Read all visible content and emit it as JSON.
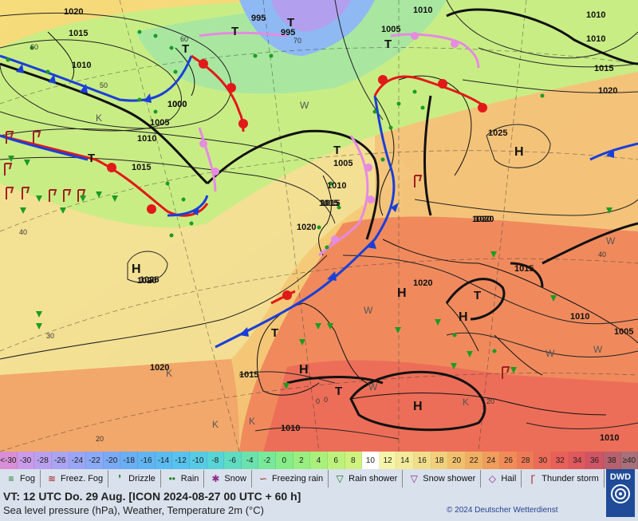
{
  "colors": {
    "cold_front": "#1a3fd8",
    "warm_front": "#e11919",
    "occluded_front": "#e58be0",
    "rain": "#1b9c24",
    "sea_bg": "#d7f08a",
    "warm_land": "#f27b57",
    "footer_bg": "#d9e1ec"
  },
  "map": {
    "high_labels": [
      "H",
      "H",
      "H",
      "H",
      "H",
      "H"
    ],
    "low_labels": [
      "T",
      "T",
      "T",
      "T",
      "T",
      "T",
      "T",
      "T",
      "T"
    ],
    "isobar_labels": [
      "1020",
      "1015",
      "1010",
      "995",
      "995",
      "1000",
      "1005",
      "1010",
      "1015",
      "1020",
      "1025",
      "1025",
      "1020",
      "1015",
      "1010",
      "1005",
      "1015",
      "1020",
      "1005",
      "1010",
      "1015",
      "1020",
      "1015",
      "1010",
      "1010",
      "1010",
      "1020",
      "1020",
      "1015",
      "1010",
      "1010",
      "1005",
      "1000",
      "1020"
    ],
    "temp_labels": [
      "60",
      "50",
      "40",
      "30",
      "20",
      "0",
      "20",
      "60",
      "40",
      "70",
      "0"
    ],
    "weather_letters": [
      "W",
      "W",
      "W",
      "W",
      "W",
      "W",
      "K",
      "K",
      "K",
      "K",
      "K"
    ]
  },
  "scale": {
    "values": [
      "<-30",
      "-30",
      "-28",
      "-26",
      "-24",
      "-22",
      "-20",
      "-18",
      "-16",
      "-14",
      "-12",
      "-10",
      "-8",
      "-6",
      "-4",
      "-2",
      "0",
      "2",
      "4",
      "6",
      "8",
      "10",
      "12",
      "14",
      "16",
      "18",
      "20",
      "22",
      "24",
      "26",
      "28",
      "30",
      "32",
      "34",
      "36",
      "38",
      "≥40"
    ],
    "colors": [
      "#d88fd6",
      "#c99be8",
      "#b9a0ef",
      "#aaa4f3",
      "#9aa6f5",
      "#8aa9f6",
      "#7aaaf5",
      "#6aaef4",
      "#60b4f2",
      "#5abbf0",
      "#57c2ee",
      "#56cbe5",
      "#58d4d6",
      "#5fdcc2",
      "#6be2ae",
      "#78e89a",
      "#86ec88",
      "#98ef80",
      "#aaf07d",
      "#bcf17c",
      "#cef27d",
      "#ffffff",
      "#f5f4a8",
      "#f3ea9a",
      "#f2de8a",
      "#f1d07c",
      "#f1c06d",
      "#f1af62",
      "#f19d5b",
      "#f18b57",
      "#ef7b56",
      "#ec6c57",
      "#e86059",
      "#de585e",
      "#cf5565",
      "#b8616e",
      "#a8707a"
    ]
  },
  "legend": {
    "items": [
      {
        "icon": "fog-icon",
        "label": "Fog"
      },
      {
        "icon": "freezing-fog-icon",
        "label": "Freez. Fog"
      },
      {
        "icon": "drizzle-icon",
        "label": "Drizzle"
      },
      {
        "icon": "rain-icon",
        "label": "Rain"
      },
      {
        "icon": "snow-icon",
        "label": "Snow"
      },
      {
        "icon": "freezing-rain-icon",
        "label": "Freezing rain"
      },
      {
        "icon": "rain-shower-icon",
        "label": "Rain shower"
      },
      {
        "icon": "snow-shower-icon",
        "label": "Snow shower"
      },
      {
        "icon": "hail-icon",
        "label": "Hail"
      },
      {
        "icon": "thunderstorm-icon",
        "label": "Thunder storm"
      }
    ]
  },
  "footer": {
    "valid_time": "VT: 12 UTC Do.  29 Aug. [ICON 2024-08-27  00 UTC + 60 h]",
    "subtitle": "Sea level pressure (hPa), Weather, Temperature 2m (°C)",
    "copyright": "© 2024 Deutscher Wetterdienst",
    "logo_text": "DWD"
  }
}
